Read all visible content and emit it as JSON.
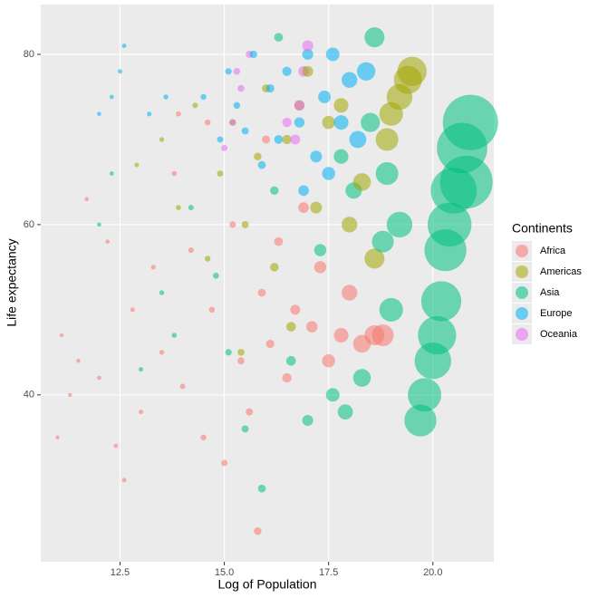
{
  "chart_data": {
    "type": "scatter",
    "x_label": "Log of Population",
    "y_label": "Life expectancy",
    "legend_title": "Continents",
    "legend_position": "right",
    "grid": true,
    "xlim": [
      10.6,
      21.46
    ],
    "ylim": [
      20.4,
      85.85
    ],
    "xticks": [
      {
        "value": 12.5,
        "label": "12.5"
      },
      {
        "value": 15,
        "label": "15.0"
      },
      {
        "value": 17.5,
        "label": "17.5"
      },
      {
        "value": 20,
        "label": "20.0"
      }
    ],
    "yticks": [
      40,
      60,
      80
    ],
    "series": [
      {
        "name": "Africa",
        "color": "#F8766D",
        "x": [
          11.0,
          11.1,
          11.3,
          11.5,
          11.7,
          12.0,
          12.2,
          12.4,
          12.6,
          12.8,
          13.0,
          13.3,
          13.5,
          13.8,
          14.0,
          14.2,
          14.5,
          14.7,
          15.0,
          15.2,
          15.4,
          15.6,
          15.8,
          15.9,
          16.1,
          16.3,
          16.5,
          16.7,
          16.9,
          17.1,
          17.3,
          17.5,
          17.8,
          18.0,
          18.3,
          18.6,
          18.8,
          14.6,
          13.9,
          16.0
        ],
        "values": [
          35,
          47,
          40,
          44,
          63,
          42,
          58,
          34,
          30,
          50,
          38,
          55,
          45,
          66,
          41,
          57,
          35,
          50,
          32,
          60,
          44,
          38,
          24,
          52,
          46,
          58,
          42,
          50,
          62,
          48,
          55,
          44,
          47,
          52,
          46,
          47,
          47,
          72,
          73,
          70
        ]
      },
      {
        "name": "Americas",
        "color": "#A3A500",
        "x": [
          12.9,
          13.5,
          13.9,
          14.3,
          14.6,
          14.9,
          15.2,
          15.5,
          15.8,
          16.0,
          16.2,
          16.5,
          16.8,
          17.0,
          17.2,
          17.5,
          17.8,
          18.0,
          18.3,
          18.6,
          18.9,
          19.0,
          19.2,
          19.4,
          19.5,
          16.6,
          15.4
        ],
        "values": [
          67,
          70,
          62,
          74,
          56,
          66,
          72,
          60,
          68,
          76,
          55,
          70,
          74,
          78,
          62,
          72,
          74,
          60,
          65,
          56,
          70,
          73,
          75,
          77,
          78,
          48,
          45
        ]
      },
      {
        "name": "Asia",
        "color": "#00BF7D",
        "x": [
          12.0,
          12.3,
          13.0,
          13.5,
          13.8,
          14.2,
          14.8,
          15.1,
          15.5,
          15.9,
          16.2,
          16.6,
          17.0,
          17.3,
          17.6,
          17.9,
          18.1,
          18.3,
          18.5,
          18.8,
          18.9,
          19.0,
          19.2,
          19.7,
          19.8,
          20.0,
          20.2,
          20.3,
          20.5,
          20.7,
          20.9,
          20.8,
          20.4,
          20.1,
          16.3,
          18.6,
          17.8
        ],
        "values": [
          60,
          66,
          43,
          52,
          47,
          62,
          54,
          45,
          36,
          29,
          64,
          44,
          37,
          57,
          40,
          38,
          64,
          42,
          72,
          58,
          66,
          50,
          60,
          37,
          40,
          44,
          51,
          57,
          64,
          69,
          72,
          65,
          60,
          47,
          82,
          82,
          68
        ]
      },
      {
        "name": "Europe",
        "color": "#00B0F6",
        "x": [
          12.0,
          12.3,
          12.5,
          12.6,
          13.2,
          13.6,
          14.5,
          14.9,
          15.1,
          15.3,
          15.5,
          15.7,
          15.9,
          16.1,
          16.3,
          16.5,
          16.8,
          17.0,
          17.2,
          17.4,
          17.6,
          17.8,
          18.0,
          18.2,
          18.4,
          16.9,
          17.5
        ],
        "values": [
          73,
          75,
          78,
          81,
          73,
          75,
          75,
          70,
          78,
          74,
          71,
          80,
          67,
          76,
          70,
          78,
          72,
          80,
          68,
          75,
          80,
          72,
          77,
          70,
          78,
          64,
          66
        ]
      },
      {
        "name": "Oceania",
        "color": "#E76BF3",
        "x": [
          15.0,
          15.2,
          15.4,
          15.6,
          16.7,
          16.8,
          16.9,
          17.0,
          15.3,
          16.5
        ],
        "values": [
          69,
          72,
          76,
          80,
          70,
          74,
          78,
          81,
          78,
          72
        ]
      }
    ]
  }
}
